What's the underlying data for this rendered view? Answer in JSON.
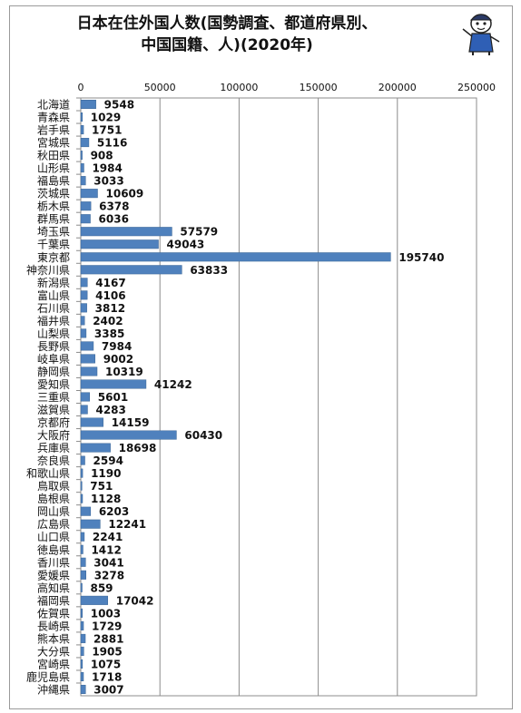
{
  "title": {
    "line1": "日本在住外国人数(国勢調査、都道府県別、",
    "line2": "中国国籍、人)(2020年)"
  },
  "colors": {
    "bar": "#4f81bd",
    "bar_edge": "#3a6595",
    "grid": "#8c8c8c",
    "frame": "#9a9a9a"
  },
  "icons": {
    "mascot": "cartoon-character-icon"
  },
  "chart_data": {
    "type": "bar",
    "orientation": "horizontal",
    "categories": [
      "北海道",
      "青森県",
      "岩手県",
      "宮城県",
      "秋田県",
      "山形県",
      "福島県",
      "茨城県",
      "栃木県",
      "群馬県",
      "埼玉県",
      "千葉県",
      "東京都",
      "神奈川県",
      "新潟県",
      "富山県",
      "石川県",
      "福井県",
      "山梨県",
      "長野県",
      "岐阜県",
      "静岡県",
      "愛知県",
      "三重県",
      "滋賀県",
      "京都府",
      "大阪府",
      "兵庫県",
      "奈良県",
      "和歌山県",
      "鳥取県",
      "島根県",
      "岡山県",
      "広島県",
      "山口県",
      "徳島県",
      "香川県",
      "愛媛県",
      "高知県",
      "福岡県",
      "佐賀県",
      "長崎県",
      "熊本県",
      "大分県",
      "宮崎県",
      "鹿児島県",
      "沖縄県"
    ],
    "values": [
      9548,
      1029,
      1751,
      5116,
      908,
      1984,
      3033,
      10609,
      6378,
      6036,
      57579,
      49043,
      195740,
      63833,
      4167,
      4106,
      3812,
      2402,
      3385,
      7984,
      9002,
      10319,
      41242,
      5601,
      4283,
      14159,
      60430,
      18698,
      2594,
      1190,
      751,
      1128,
      6203,
      12241,
      2241,
      1412,
      3041,
      3278,
      859,
      17042,
      1003,
      1729,
      2881,
      1905,
      1075,
      1718,
      3007
    ],
    "xlim": [
      0,
      250000
    ],
    "x_ticks": [
      0,
      50000,
      100000,
      150000,
      200000,
      250000
    ],
    "x_tick_labels": [
      "0",
      "50000",
      "100000",
      "150000",
      "200000",
      "250000"
    ],
    "x_axis_position": "top",
    "grid": true,
    "data_labels": true,
    "legend": "none"
  }
}
